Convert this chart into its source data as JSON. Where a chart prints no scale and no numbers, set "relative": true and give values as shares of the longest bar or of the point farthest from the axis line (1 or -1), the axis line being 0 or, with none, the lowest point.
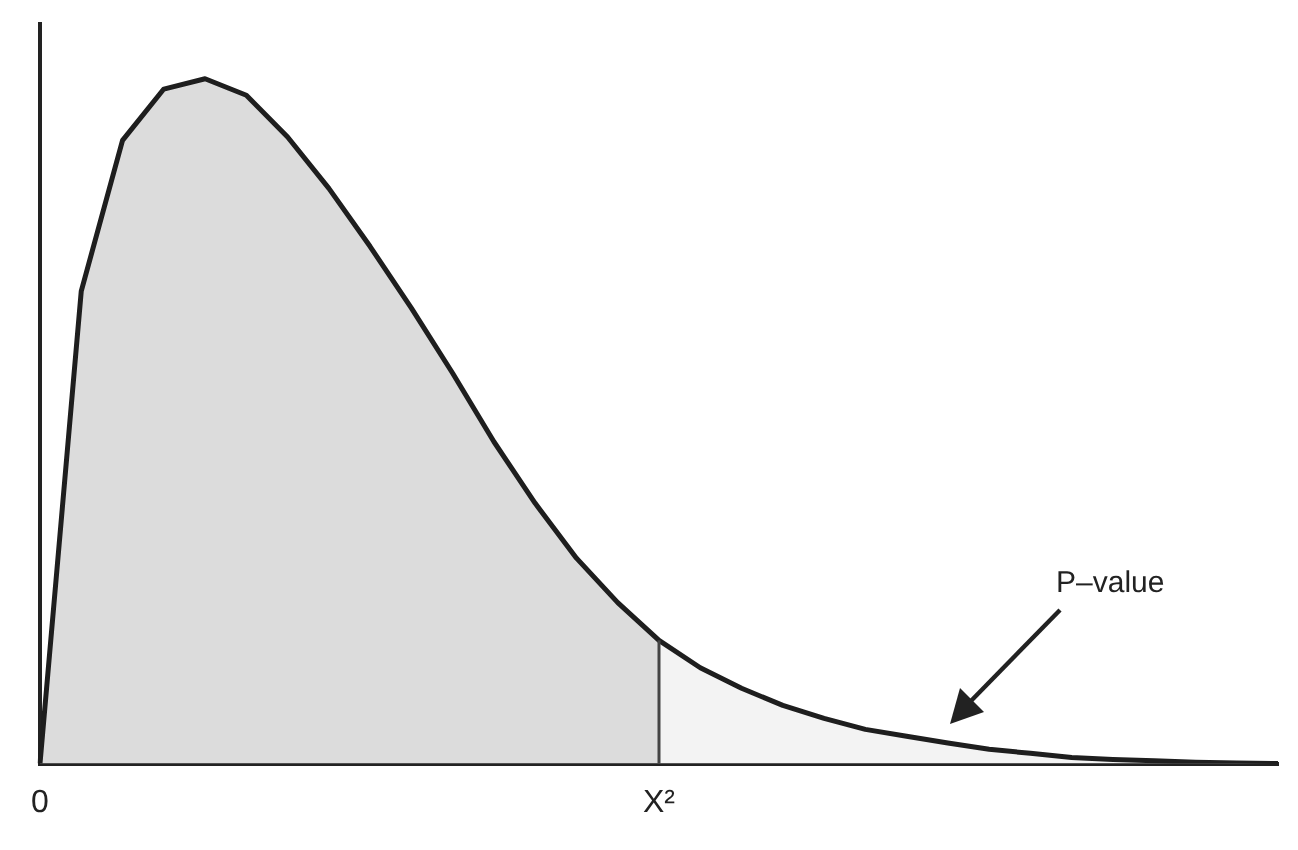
{
  "chart_data": {
    "type": "area",
    "relative": true,
    "categories": [
      "0",
      null,
      null,
      null,
      null,
      null,
      null,
      null,
      null,
      null,
      null,
      null,
      null,
      null,
      null,
      "X²",
      null,
      null,
      null,
      null,
      null,
      null,
      null,
      null,
      null,
      null,
      null,
      null,
      null,
      null,
      null
    ],
    "series": [
      {
        "type": "area",
        "color": "#dcdcdc",
        "values": [
          0,
          0.69,
          0.91,
          0.985,
          1,
          0.976,
          0.915,
          0.84,
          0.755,
          0.665,
          0.57,
          0.47,
          0.38,
          0.3,
          0.235,
          0.18,
          null,
          null,
          null,
          null,
          null,
          null,
          null,
          null,
          null,
          null,
          null,
          null,
          null,
          null,
          null
        ]
      },
      {
        "type": "area",
        "color": "#f3f3f3",
        "values": [
          null,
          null,
          null,
          null,
          null,
          null,
          null,
          null,
          null,
          null,
          null,
          null,
          null,
          null,
          null,
          0.18,
          0.14,
          0.11,
          0.085,
          0.066,
          0.05,
          0.04,
          0.03,
          0.021,
          0.015,
          0.009,
          0.006,
          0.004,
          0.002,
          0.001,
          0
        ]
      },
      {
        "type": "line",
        "color": "#1e1e1e",
        "values": [
          0,
          0.69,
          0.91,
          0.985,
          1,
          0.976,
          0.915,
          0.84,
          0.755,
          0.665,
          0.57,
          0.47,
          0.38,
          0.3,
          0.235,
          0.18,
          0.14,
          0.11,
          0.085,
          0.066,
          0.05,
          0.04,
          0.03,
          0.021,
          0.015,
          0.009,
          0.006,
          0.004,
          0.002,
          0.001,
          0
        ]
      }
    ],
    "ref_lines": [
      {
        "axis": "x",
        "value": "X²",
        "color": "#444444"
      }
    ],
    "annotations": [
      "P–value"
    ],
    "legend": false,
    "grid": false,
    "tick_labels": "x",
    "marker": "none"
  }
}
